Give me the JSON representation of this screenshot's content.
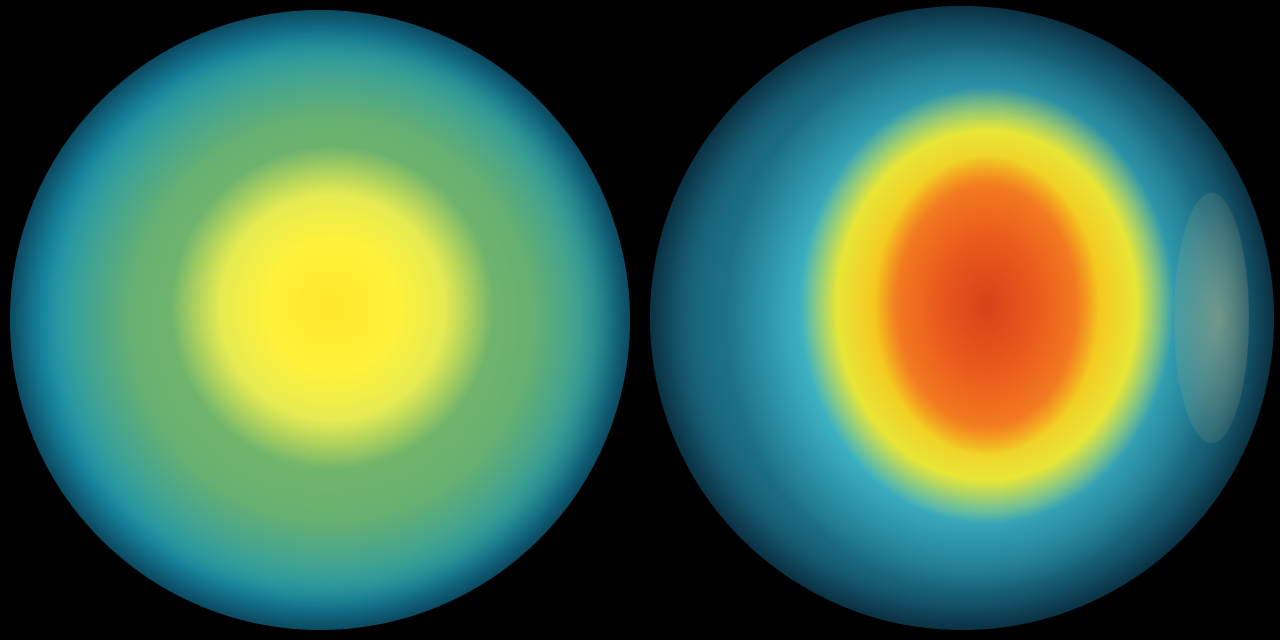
{
  "image": {
    "panels": [
      {
        "subject": "globe-left",
        "colors": {
          "core": "#ffe62a",
          "ocean": "#1b96b0"
        }
      },
      {
        "subject": "globe-right",
        "colors": {
          "core": "#d9411a",
          "ring": "#f5c81f",
          "halo": "#5ae1e6",
          "ocean": "#1c6f86"
        }
      }
    ],
    "background": "#000000"
  }
}
